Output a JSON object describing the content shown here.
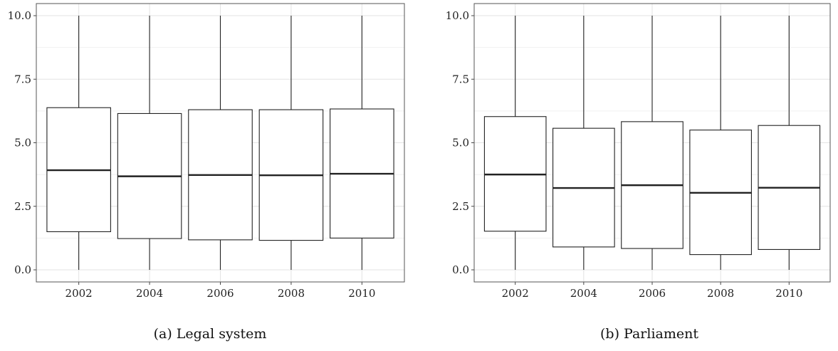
{
  "chart_data": [
    {
      "type": "boxplot",
      "panel": "a",
      "caption": "(a) Legal system",
      "categories": [
        "2002",
        "2004",
        "2006",
        "2008",
        "2010"
      ],
      "ylim": [
        0,
        10
      ],
      "yticks": [
        "0.0",
        "2.5",
        "5.0",
        "7.5",
        "10.0"
      ],
      "grid": true,
      "boxes": [
        {
          "x": "2002",
          "min": 0,
          "q1": 1.5,
          "median": 3.92,
          "q3": 6.38,
          "max": 10
        },
        {
          "x": "2004",
          "min": 0,
          "q1": 1.23,
          "median": 3.68,
          "q3": 6.15,
          "max": 10
        },
        {
          "x": "2006",
          "min": 0,
          "q1": 1.18,
          "median": 3.73,
          "q3": 6.3,
          "max": 10
        },
        {
          "x": "2008",
          "min": 0,
          "q1": 1.16,
          "median": 3.72,
          "q3": 6.3,
          "max": 10
        },
        {
          "x": "2010",
          "min": 0,
          "q1": 1.25,
          "median": 3.78,
          "q3": 6.33,
          "max": 10
        }
      ]
    },
    {
      "type": "boxplot",
      "panel": "b",
      "caption": "(b) Parliament",
      "categories": [
        "2002",
        "2004",
        "2006",
        "2008",
        "2010"
      ],
      "ylim": [
        0,
        10
      ],
      "yticks": [
        "0.0",
        "2.5",
        "5.0",
        "7.5",
        "10.0"
      ],
      "grid": true,
      "boxes": [
        {
          "x": "2002",
          "min": 0,
          "q1": 1.52,
          "median": 3.75,
          "q3": 6.03,
          "max": 10
        },
        {
          "x": "2004",
          "min": 0,
          "q1": 0.9,
          "median": 3.22,
          "q3": 5.57,
          "max": 10
        },
        {
          "x": "2006",
          "min": 0,
          "q1": 0.84,
          "median": 3.33,
          "q3": 5.83,
          "max": 10
        },
        {
          "x": "2008",
          "min": 0,
          "q1": 0.6,
          "median": 3.03,
          "q3": 5.5,
          "max": 10
        },
        {
          "x": "2010",
          "min": 0,
          "q1": 0.8,
          "median": 3.23,
          "q3": 5.68,
          "max": 10
        }
      ]
    }
  ]
}
